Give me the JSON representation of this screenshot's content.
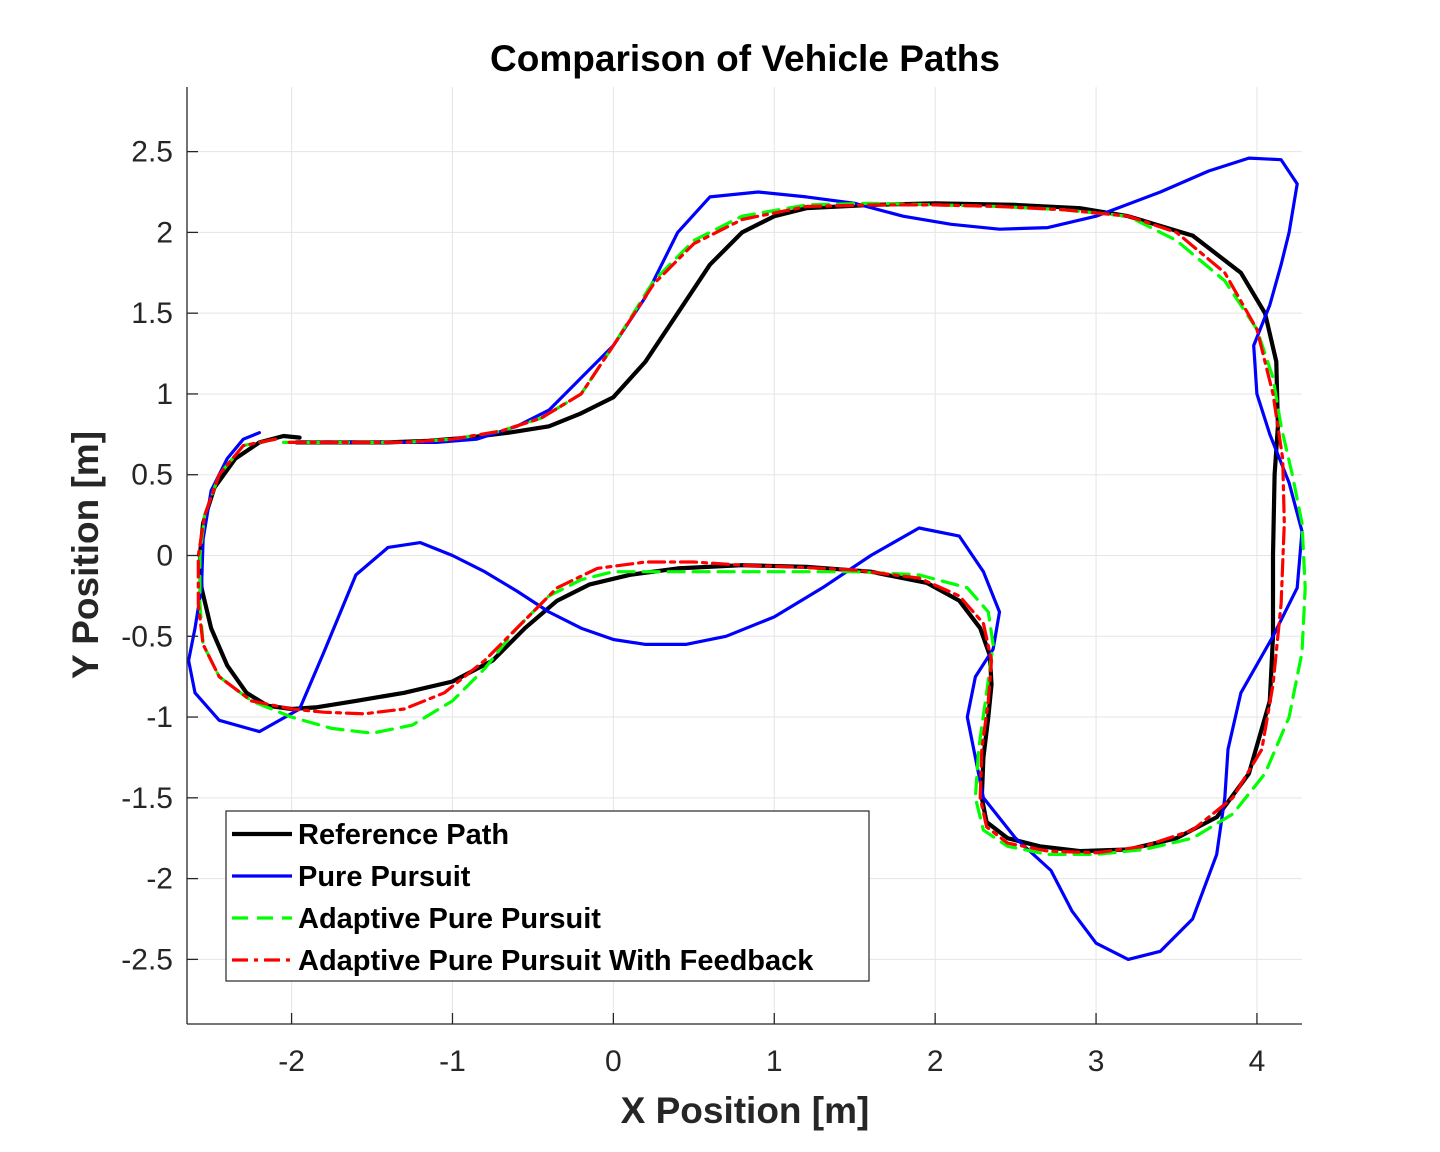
{
  "chart_data": {
    "type": "line",
    "title": "Comparison of Vehicle Paths",
    "xlabel": "X Position [m]",
    "ylabel": "Y Position [m]",
    "xlim": [
      -2.65,
      4.28
    ],
    "ylim": [
      -2.9,
      2.9
    ],
    "xticks": [
      -2,
      -1,
      0,
      1,
      2,
      3,
      4
    ],
    "yticks": [
      2.5,
      2,
      1.5,
      1,
      0.5,
      0,
      -0.5,
      -1,
      -1.5,
      -2,
      -2.5
    ],
    "grid": true,
    "legend_position": "bottom-left",
    "series": [
      {
        "name": "Reference Path",
        "color": "#000000",
        "style": "solid",
        "x": [
          -1.95,
          -2.05,
          -2.2,
          -2.35,
          -2.48,
          -2.55,
          -2.57,
          -2.56,
          -2.5,
          -2.4,
          -2.28,
          -2.15,
          -2.0,
          -1.85,
          -1.6,
          -1.3,
          -1.0,
          -0.75,
          -0.55,
          -0.35,
          -0.15,
          0.1,
          0.4,
          0.8,
          1.2,
          1.6,
          1.95,
          2.15,
          2.28,
          2.34,
          2.35,
          2.33,
          2.3,
          2.29,
          2.32,
          2.45,
          2.65,
          2.9,
          3.2,
          3.5,
          3.75,
          3.95,
          4.08,
          4.1,
          4.1,
          4.11,
          4.13,
          4.12,
          4.05,
          3.9,
          3.6,
          3.2,
          2.9,
          2.5,
          2.0,
          1.6,
          1.2,
          1.0,
          0.8,
          0.6,
          0.4,
          0.2,
          0.0,
          -0.2,
          -0.4,
          -0.65,
          -0.9,
          -1.15,
          -1.4,
          -1.6,
          -1.8,
          -1.97
        ],
        "y": [
          0.73,
          0.74,
          0.7,
          0.6,
          0.42,
          0.2,
          0.0,
          -0.2,
          -0.45,
          -0.68,
          -0.85,
          -0.93,
          -0.95,
          -0.94,
          -0.9,
          -0.85,
          -0.78,
          -0.65,
          -0.45,
          -0.28,
          -0.18,
          -0.12,
          -0.08,
          -0.06,
          -0.07,
          -0.1,
          -0.17,
          -0.28,
          -0.45,
          -0.62,
          -0.8,
          -1.0,
          -1.25,
          -1.5,
          -1.65,
          -1.75,
          -1.8,
          -1.83,
          -1.82,
          -1.75,
          -1.62,
          -1.35,
          -0.9,
          -0.5,
          0.0,
          0.5,
          0.8,
          1.2,
          1.5,
          1.75,
          1.98,
          2.1,
          2.15,
          2.17,
          2.18,
          2.17,
          2.15,
          2.1,
          2.0,
          1.8,
          1.5,
          1.2,
          0.98,
          0.88,
          0.8,
          0.76,
          0.73,
          0.71,
          0.7,
          0.7,
          0.7,
          0.7
        ]
      },
      {
        "name": "Pure Pursuit",
        "color": "#0000ff",
        "style": "solid",
        "x": [
          -2.2,
          -2.3,
          -2.4,
          -2.5,
          -2.55,
          -2.56,
          -2.6,
          -2.64,
          -2.6,
          -2.45,
          -2.2,
          -1.95,
          -1.8,
          -1.6,
          -1.4,
          -1.2,
          -1.0,
          -0.8,
          -0.6,
          -0.4,
          -0.2,
          0.0,
          0.2,
          0.45,
          0.7,
          1.0,
          1.3,
          1.6,
          1.9,
          2.15,
          2.3,
          2.4,
          2.36,
          2.25,
          2.2,
          2.3,
          2.5,
          2.72,
          2.85,
          3.0,
          3.2,
          3.4,
          3.6,
          3.75,
          3.8,
          3.82,
          3.9,
          4.1,
          4.25,
          4.28,
          4.2,
          4.08,
          4.0,
          3.98,
          4.08,
          4.15,
          4.2,
          4.25,
          4.15,
          3.95,
          3.7,
          3.4,
          3.0,
          2.7,
          2.4,
          2.1,
          1.8,
          1.5,
          1.2,
          0.9,
          0.6,
          0.4,
          0.2,
          0.0,
          -0.2,
          -0.4,
          -0.6,
          -0.85,
          -1.1,
          -1.4,
          -1.7,
          -2.0
        ],
        "y": [
          0.76,
          0.72,
          0.6,
          0.4,
          0.1,
          -0.2,
          -0.45,
          -0.65,
          -0.85,
          -1.02,
          -1.09,
          -0.95,
          -0.6,
          -0.12,
          0.05,
          0.08,
          0.0,
          -0.1,
          -0.22,
          -0.35,
          -0.45,
          -0.52,
          -0.55,
          -0.55,
          -0.5,
          -0.38,
          -0.2,
          0.0,
          0.17,
          0.12,
          -0.1,
          -0.35,
          -0.58,
          -0.75,
          -1.0,
          -1.5,
          -1.75,
          -1.95,
          -2.2,
          -2.4,
          -2.5,
          -2.45,
          -2.25,
          -1.85,
          -1.5,
          -1.2,
          -0.85,
          -0.5,
          -0.2,
          0.15,
          0.45,
          0.75,
          1.0,
          1.3,
          1.55,
          1.8,
          2.0,
          2.3,
          2.45,
          2.46,
          2.38,
          2.25,
          2.1,
          2.03,
          2.02,
          2.05,
          2.1,
          2.18,
          2.22,
          2.25,
          2.22,
          2.0,
          1.6,
          1.3,
          1.1,
          0.9,
          0.8,
          0.72,
          0.7,
          0.7,
          0.7,
          0.7
        ]
      },
      {
        "name": "Adaptive Pure Pursuit",
        "color": "#00ff00",
        "style": "dashed",
        "x": [
          -2.1,
          -2.3,
          -2.45,
          -2.54,
          -2.57,
          -2.57,
          -2.55,
          -2.45,
          -2.25,
          -2.0,
          -1.75,
          -1.5,
          -1.25,
          -1.0,
          -0.8,
          -0.6,
          -0.4,
          -0.2,
          0.0,
          0.3,
          0.7,
          1.1,
          1.5,
          1.9,
          2.2,
          2.33,
          2.36,
          2.32,
          2.27,
          2.25,
          2.3,
          2.45,
          2.7,
          3.0,
          3.3,
          3.6,
          3.85,
          4.05,
          4.2,
          4.28,
          4.3,
          4.28,
          4.22,
          4.15,
          4.1,
          4.0,
          3.8,
          3.5,
          3.2,
          2.8,
          2.4,
          2.0,
          1.6,
          1.2,
          0.8,
          0.5,
          0.25,
          0.0,
          -0.2,
          -0.45,
          -0.7,
          -1.0,
          -1.3,
          -1.6,
          -1.9,
          -2.05
        ],
        "y": [
          0.72,
          0.68,
          0.5,
          0.25,
          0.0,
          -0.3,
          -0.55,
          -0.75,
          -0.9,
          -1.0,
          -1.07,
          -1.1,
          -1.05,
          -0.9,
          -0.7,
          -0.45,
          -0.25,
          -0.15,
          -0.1,
          -0.1,
          -0.1,
          -0.1,
          -0.1,
          -0.12,
          -0.2,
          -0.35,
          -0.55,
          -0.85,
          -1.2,
          -1.5,
          -1.7,
          -1.8,
          -1.85,
          -1.85,
          -1.82,
          -1.75,
          -1.6,
          -1.35,
          -1.0,
          -0.6,
          -0.2,
          0.2,
          0.5,
          0.8,
          1.1,
          1.4,
          1.7,
          1.95,
          2.1,
          2.14,
          2.16,
          2.17,
          2.18,
          2.17,
          2.1,
          1.95,
          1.7,
          1.3,
          1.0,
          0.85,
          0.77,
          0.72,
          0.7,
          0.7,
          0.7,
          0.7
        ]
      },
      {
        "name": "Adaptive Pure Pursuit With Feedback",
        "color": "#ff0000",
        "style": "dashdot",
        "x": [
          -2.1,
          -2.3,
          -2.45,
          -2.54,
          -2.58,
          -2.58,
          -2.55,
          -2.45,
          -2.25,
          -2.0,
          -1.8,
          -1.55,
          -1.3,
          -1.05,
          -0.8,
          -0.55,
          -0.35,
          -0.1,
          0.2,
          0.5,
          0.8,
          1.1,
          1.5,
          1.9,
          2.15,
          2.3,
          2.35,
          2.33,
          2.29,
          2.28,
          2.32,
          2.45,
          2.7,
          3.0,
          3.3,
          3.6,
          3.85,
          4.03,
          4.1,
          4.15,
          4.17,
          4.16,
          4.1,
          4.0,
          3.8,
          3.5,
          3.2,
          2.8,
          2.4,
          2.0,
          1.6,
          1.2,
          0.8,
          0.5,
          0.25,
          0.0,
          -0.2,
          -0.45,
          -0.7,
          -1.0,
          -1.3,
          -1.6,
          -1.9,
          -2.05
        ],
        "y": [
          0.72,
          0.68,
          0.5,
          0.25,
          0.0,
          -0.3,
          -0.55,
          -0.75,
          -0.9,
          -0.95,
          -0.97,
          -0.98,
          -0.95,
          -0.85,
          -0.65,
          -0.4,
          -0.2,
          -0.08,
          -0.04,
          -0.04,
          -0.06,
          -0.07,
          -0.09,
          -0.14,
          -0.25,
          -0.42,
          -0.65,
          -0.9,
          -1.2,
          -1.5,
          -1.68,
          -1.78,
          -1.83,
          -1.84,
          -1.8,
          -1.7,
          -1.5,
          -1.2,
          -0.8,
          -0.3,
          0.2,
          0.6,
          1.0,
          1.4,
          1.75,
          2.0,
          2.1,
          2.14,
          2.16,
          2.17,
          2.17,
          2.16,
          2.08,
          1.93,
          1.68,
          1.3,
          1.0,
          0.85,
          0.77,
          0.72,
          0.7,
          0.7,
          0.7,
          0.7
        ]
      }
    ]
  }
}
